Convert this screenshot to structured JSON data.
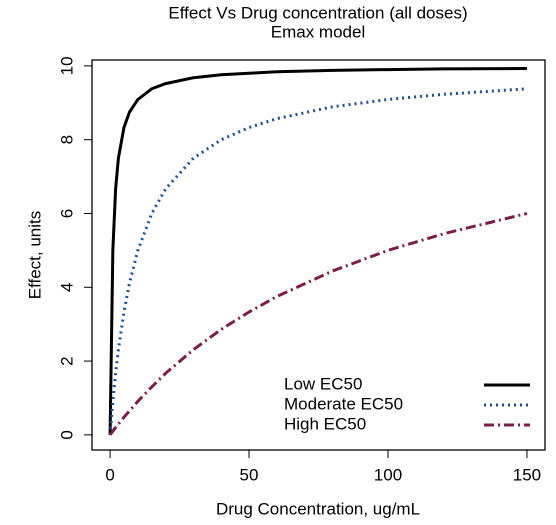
{
  "chart_data": {
    "type": "line",
    "title": "Effect Vs Drug concentration (all doses)",
    "subtitle": "Emax model",
    "x_label": "Drug Concentration, ug/mL",
    "y_label": "Effect, units",
    "x": [
      0,
      1,
      2,
      3,
      5,
      7,
      10,
      15,
      20,
      30,
      40,
      50,
      60,
      80,
      100,
      120,
      150
    ],
    "series": [
      {
        "name": "Low EC50",
        "color": "#000000",
        "dash": "solid",
        "values": [
          0,
          5,
          6.67,
          7.5,
          8.33,
          8.75,
          9.09,
          9.38,
          9.52,
          9.68,
          9.76,
          9.8,
          9.84,
          9.88,
          9.9,
          9.92,
          9.93
        ]
      },
      {
        "name": "Moderate EC50",
        "color": "#1f4e8c",
        "dash": "dotted",
        "values": [
          0,
          0.91,
          1.67,
          2.31,
          3.33,
          4.12,
          5,
          6,
          6.67,
          7.5,
          8,
          8.33,
          8.57,
          8.89,
          9.09,
          9.23,
          9.38
        ]
      },
      {
        "name": "High EC50",
        "color": "#7a1f4a",
        "dash": "dashdot",
        "values": [
          0,
          0.1,
          0.2,
          0.29,
          0.48,
          0.65,
          0.91,
          1.3,
          1.67,
          2.31,
          2.86,
          3.33,
          3.75,
          4.44,
          5,
          5.45,
          6
        ]
      }
    ],
    "xlim": [
      -6.5,
      156.5
    ],
    "ylim": [
      -0.41,
      10.16
    ],
    "xticks": [
      0,
      50,
      100,
      150
    ],
    "yticks": [
      0,
      2,
      4,
      6,
      8,
      10
    ],
    "grid": false,
    "legend": "bottom-right"
  }
}
